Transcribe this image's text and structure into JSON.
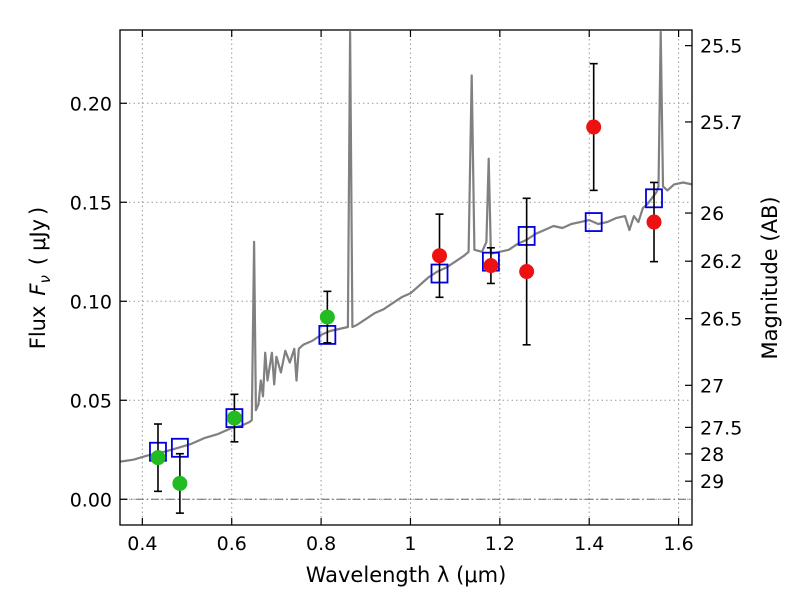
{
  "chart_data": {
    "type": "scatter",
    "xlabel": "Wavelength  λ (μm)",
    "ylabel": "Flux  F_ν  ( μJy )",
    "ylabel_parts": {
      "prefix": "Flux",
      "symbol": "F",
      "subscript": "ν",
      "unit_open": "(",
      "unit": "μJy",
      "unit_close": ")"
    },
    "y2label": "Magnitude (AB)",
    "xlim": [
      0.35,
      1.63
    ],
    "ylim": [
      -0.013,
      0.237
    ],
    "grid": true,
    "x_ticks": [
      {
        "value": 0.4,
        "label": "0.4"
      },
      {
        "value": 0.6,
        "label": "0.6"
      },
      {
        "value": 0.8,
        "label": "0.8"
      },
      {
        "value": 1.0,
        "label": "1"
      },
      {
        "value": 1.2,
        "label": "1.2"
      },
      {
        "value": 1.4,
        "label": "1.4"
      },
      {
        "value": 1.6,
        "label": "1.6"
      }
    ],
    "y_ticks": [
      {
        "value": 0.0,
        "label": "0.00"
      },
      {
        "value": 0.05,
        "label": "0.05"
      },
      {
        "value": 0.1,
        "label": "0.10"
      },
      {
        "value": 0.15,
        "label": "0.15"
      },
      {
        "value": 0.2,
        "label": "0.20"
      }
    ],
    "mag_ticks": [
      {
        "value": 25.5,
        "label": "25.5"
      },
      {
        "value": 25.7,
        "label": "25.7"
      },
      {
        "value": 26.0,
        "label": "26"
      },
      {
        "value": 26.2,
        "label": "26.2"
      },
      {
        "value": 26.5,
        "label": "26.5"
      },
      {
        "value": 27.0,
        "label": "27"
      },
      {
        "value": 27.5,
        "label": "27.5"
      },
      {
        "value": 28.0,
        "label": "28"
      },
      {
        "value": 29.0,
        "label": "29"
      }
    ],
    "colors": {
      "model": "#808080",
      "green": "#22bb22",
      "red": "#ee1111",
      "model_box": "#0000dd",
      "grid": "#999999",
      "zero_line": "#666666"
    },
    "series": [
      {
        "name": "green-photometry",
        "color": "#22bb22",
        "points": [
          {
            "x": 0.435,
            "y": 0.021,
            "yerr": 0.017
          },
          {
            "x": 0.484,
            "y": 0.008,
            "yerr": 0.015
          },
          {
            "x": 0.606,
            "y": 0.041,
            "yerr": 0.012
          },
          {
            "x": 0.814,
            "y": 0.092,
            "yerr": 0.013
          }
        ]
      },
      {
        "name": "red-photometry",
        "color": "#ee1111",
        "points": [
          {
            "x": 1.065,
            "y": 0.123,
            "yerr": 0.021
          },
          {
            "x": 1.18,
            "y": 0.118,
            "yerr": 0.009
          },
          {
            "x": 1.26,
            "y": 0.115,
            "yerr": 0.037
          },
          {
            "x": 1.41,
            "y": 0.188,
            "yerr": 0.032
          },
          {
            "x": 1.545,
            "y": 0.14,
            "yerr": 0.02
          }
        ]
      },
      {
        "name": "model-synthetic-photometry",
        "color": "#0000dd",
        "points": [
          {
            "x": 0.435,
            "y": 0.024
          },
          {
            "x": 0.484,
            "y": 0.026
          },
          {
            "x": 0.606,
            "y": 0.041
          },
          {
            "x": 0.814,
            "y": 0.083
          },
          {
            "x": 1.065,
            "y": 0.114
          },
          {
            "x": 1.18,
            "y": 0.12
          },
          {
            "x": 1.26,
            "y": 0.133
          },
          {
            "x": 1.41,
            "y": 0.14
          },
          {
            "x": 1.545,
            "y": 0.152
          }
        ]
      }
    ],
    "model_spectrum": [
      [
        0.35,
        0.019
      ],
      [
        0.38,
        0.02
      ],
      [
        0.41,
        0.022
      ],
      [
        0.45,
        0.024
      ],
      [
        0.48,
        0.026
      ],
      [
        0.51,
        0.028
      ],
      [
        0.54,
        0.031
      ],
      [
        0.57,
        0.033
      ],
      [
        0.6,
        0.036
      ],
      [
        0.62,
        0.037
      ],
      [
        0.63,
        0.038
      ],
      [
        0.64,
        0.039
      ],
      [
        0.645,
        0.04
      ],
      [
        0.65,
        0.13
      ],
      [
        0.654,
        0.045
      ],
      [
        0.66,
        0.048
      ],
      [
        0.665,
        0.06
      ],
      [
        0.67,
        0.052
      ],
      [
        0.675,
        0.074
      ],
      [
        0.68,
        0.06
      ],
      [
        0.69,
        0.074
      ],
      [
        0.695,
        0.058
      ],
      [
        0.7,
        0.072
      ],
      [
        0.71,
        0.064
      ],
      [
        0.72,
        0.075
      ],
      [
        0.73,
        0.069
      ],
      [
        0.74,
        0.076
      ],
      [
        0.745,
        0.06
      ],
      [
        0.75,
        0.076
      ],
      [
        0.76,
        0.078
      ],
      [
        0.78,
        0.08
      ],
      [
        0.8,
        0.083
      ],
      [
        0.82,
        0.085
      ],
      [
        0.84,
        0.086
      ],
      [
        0.86,
        0.087
      ],
      [
        0.865,
        0.236
      ],
      [
        0.87,
        0.087
      ],
      [
        0.88,
        0.088
      ],
      [
        0.9,
        0.091
      ],
      [
        0.92,
        0.094
      ],
      [
        0.94,
        0.096
      ],
      [
        0.96,
        0.099
      ],
      [
        0.98,
        0.102
      ],
      [
        1.0,
        0.104
      ],
      [
        1.02,
        0.108
      ],
      [
        1.04,
        0.112
      ],
      [
        1.06,
        0.115
      ],
      [
        1.08,
        0.117
      ],
      [
        1.1,
        0.12
      ],
      [
        1.12,
        0.123
      ],
      [
        1.13,
        0.125
      ],
      [
        1.137,
        0.214
      ],
      [
        1.143,
        0.126
      ],
      [
        1.16,
        0.125
      ],
      [
        1.17,
        0.13
      ],
      [
        1.175,
        0.172
      ],
      [
        1.18,
        0.124
      ],
      [
        1.2,
        0.125
      ],
      [
        1.22,
        0.126
      ],
      [
        1.24,
        0.129
      ],
      [
        1.26,
        0.131
      ],
      [
        1.28,
        0.134
      ],
      [
        1.3,
        0.136
      ],
      [
        1.32,
        0.138
      ],
      [
        1.34,
        0.137
      ],
      [
        1.36,
        0.139
      ],
      [
        1.38,
        0.14
      ],
      [
        1.4,
        0.141
      ],
      [
        1.42,
        0.139
      ],
      [
        1.44,
        0.14
      ],
      [
        1.46,
        0.142
      ],
      [
        1.48,
        0.143
      ],
      [
        1.49,
        0.136
      ],
      [
        1.5,
        0.143
      ],
      [
        1.51,
        0.14
      ],
      [
        1.52,
        0.147
      ],
      [
        1.53,
        0.149
      ],
      [
        1.54,
        0.152
      ],
      [
        1.55,
        0.155
      ],
      [
        1.555,
        0.158
      ],
      [
        1.56,
        0.236
      ],
      [
        1.565,
        0.158
      ],
      [
        1.575,
        0.156
      ],
      [
        1.59,
        0.159
      ],
      [
        1.61,
        0.16
      ],
      [
        1.63,
        0.159
      ]
    ]
  }
}
